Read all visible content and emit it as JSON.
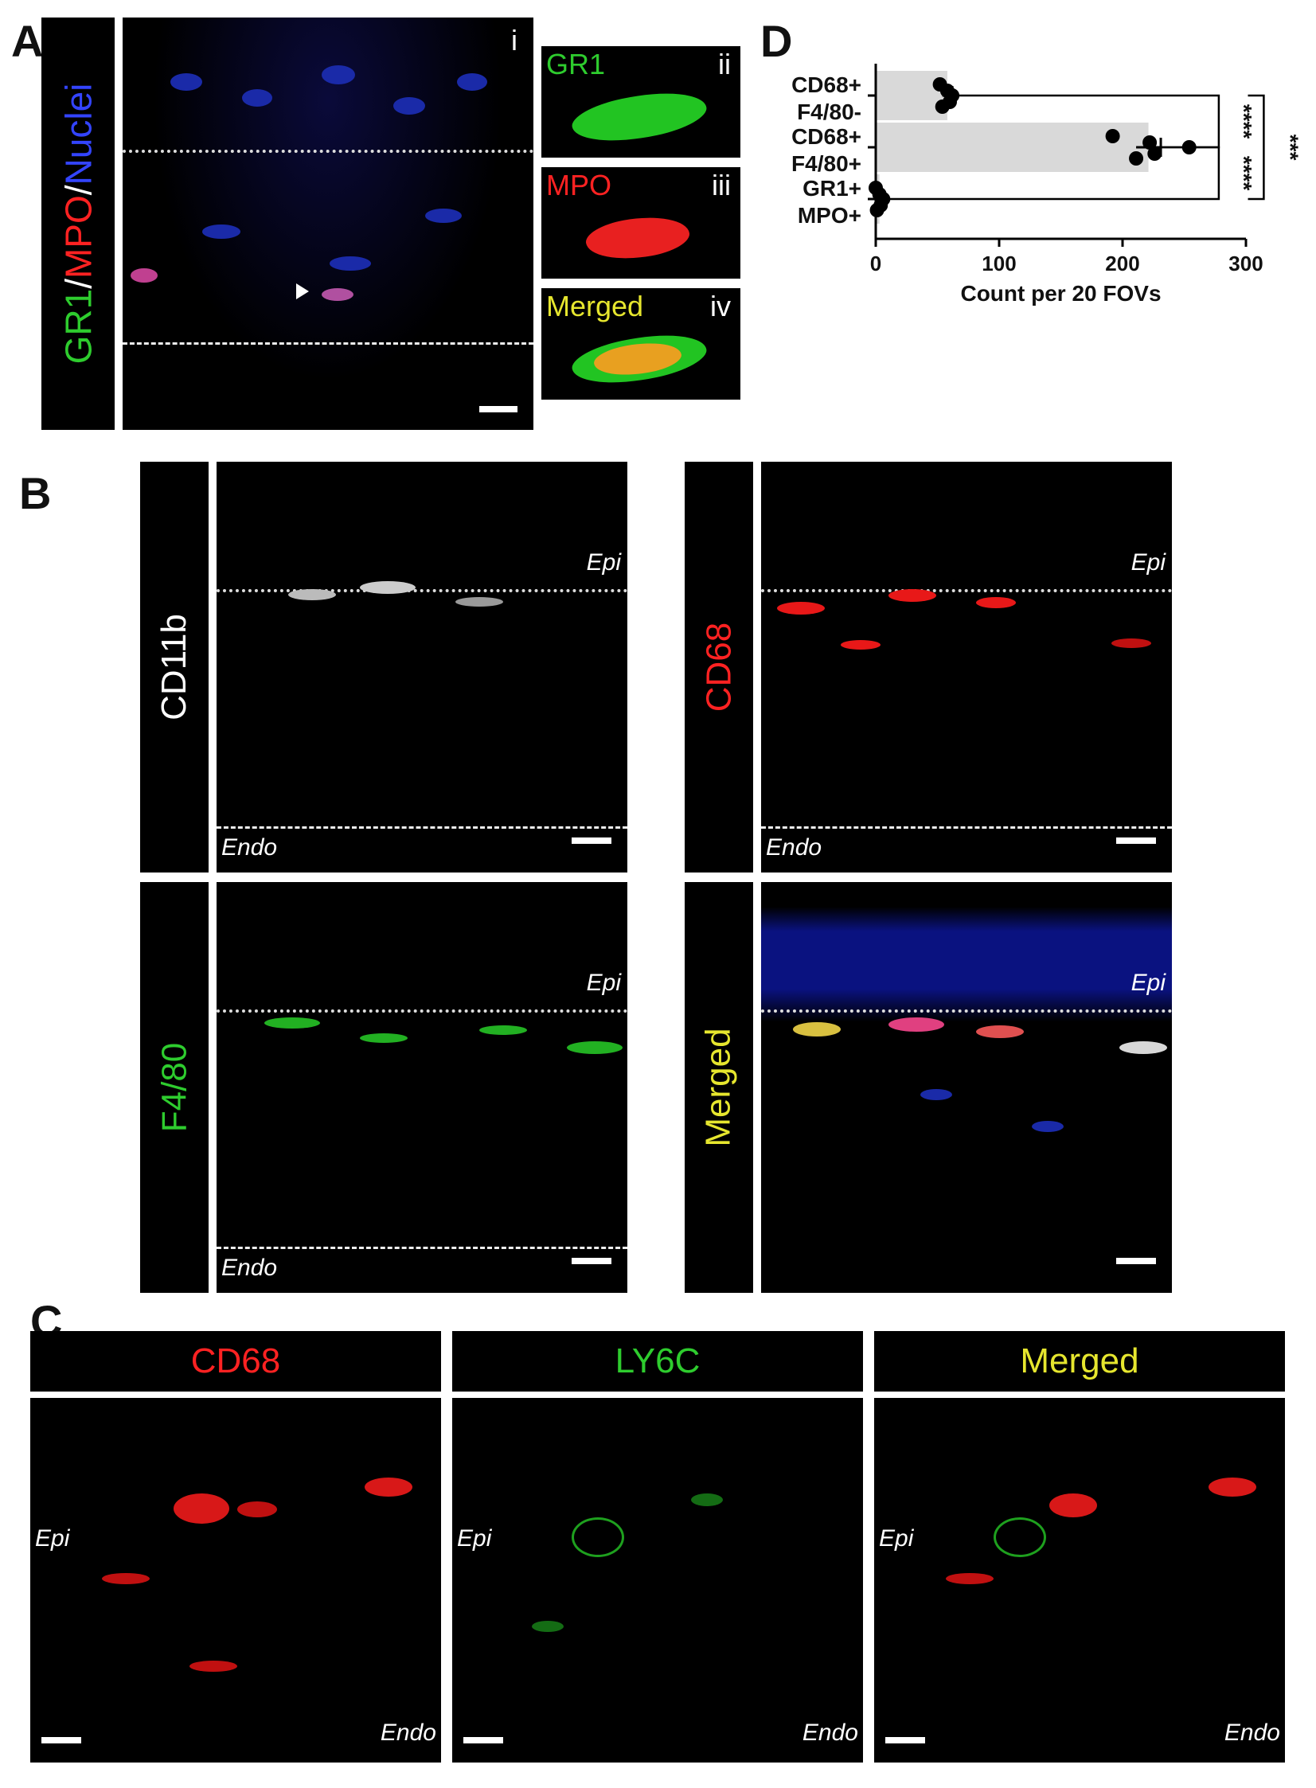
{
  "panels": {
    "A": {
      "letter": "A",
      "side_label": {
        "gr1": "GR1",
        "sep1": "/",
        "mpo": "MPO",
        "sep2": "/",
        "nuclei": "Nuclei"
      },
      "main_numeral": "i",
      "insets": [
        {
          "label": "GR1",
          "numeral": "ii",
          "label_color": "#2ecc2e"
        },
        {
          "label": "MPO",
          "numeral": "iii",
          "label_color": "#ff2222"
        },
        {
          "label": "Merged",
          "numeral": "iv",
          "label_color": "#e6e62e"
        }
      ]
    },
    "B": {
      "letter": "B",
      "images": [
        {
          "label": "CD11b",
          "label_color": "#ffffff",
          "epi": "Epi",
          "endo": "Endo"
        },
        {
          "label": "CD68",
          "label_color": "#ff2222",
          "epi": "Epi",
          "endo": "Endo"
        },
        {
          "label": "F4/80",
          "label_color": "#2ecc2e",
          "epi": "Epi",
          "endo": "Endo"
        },
        {
          "label": "Merged",
          "label_color": "#e6e62e",
          "epi": "Epi",
          "endo": ""
        }
      ]
    },
    "C": {
      "letter": "C",
      "images": [
        {
          "label": "CD68",
          "label_color": "#ff2222",
          "epi": "Epi",
          "endo": "Endo"
        },
        {
          "label": "LY6C",
          "label_color": "#2ecc2e",
          "epi": "Epi",
          "endo": "Endo"
        },
        {
          "label": "Merged",
          "label_color": "#e6e62e",
          "epi": "Epi",
          "endo": "Endo"
        }
      ]
    },
    "D": {
      "letter": "D"
    }
  },
  "chart_data": {
    "type": "bar",
    "orientation": "horizontal",
    "categories": [
      {
        "line1": "CD68+",
        "line2": "F4/80-"
      },
      {
        "line1": "CD68+",
        "line2": "F4/80+"
      },
      {
        "line1": "GR1+",
        "line2": "MPO+"
      }
    ],
    "means": [
      58,
      221,
      3
    ],
    "sem": [
      4,
      10,
      1
    ],
    "points": [
      [
        52,
        54,
        58,
        60,
        62
      ],
      [
        192,
        211,
        222,
        226,
        254
      ],
      [
        0,
        1,
        3,
        4,
        6
      ]
    ],
    "xlabel": "Count per 20 FOVs",
    "xlim": [
      0,
      300
    ],
    "xticks": [
      0,
      100,
      200,
      300
    ],
    "bar_color": "#d9d9d9",
    "significance": [
      {
        "between": [
          0,
          1
        ],
        "label": "****"
      },
      {
        "between": [
          1,
          2
        ],
        "label": "****"
      },
      {
        "between": [
          0,
          2
        ],
        "label": "***"
      }
    ]
  }
}
